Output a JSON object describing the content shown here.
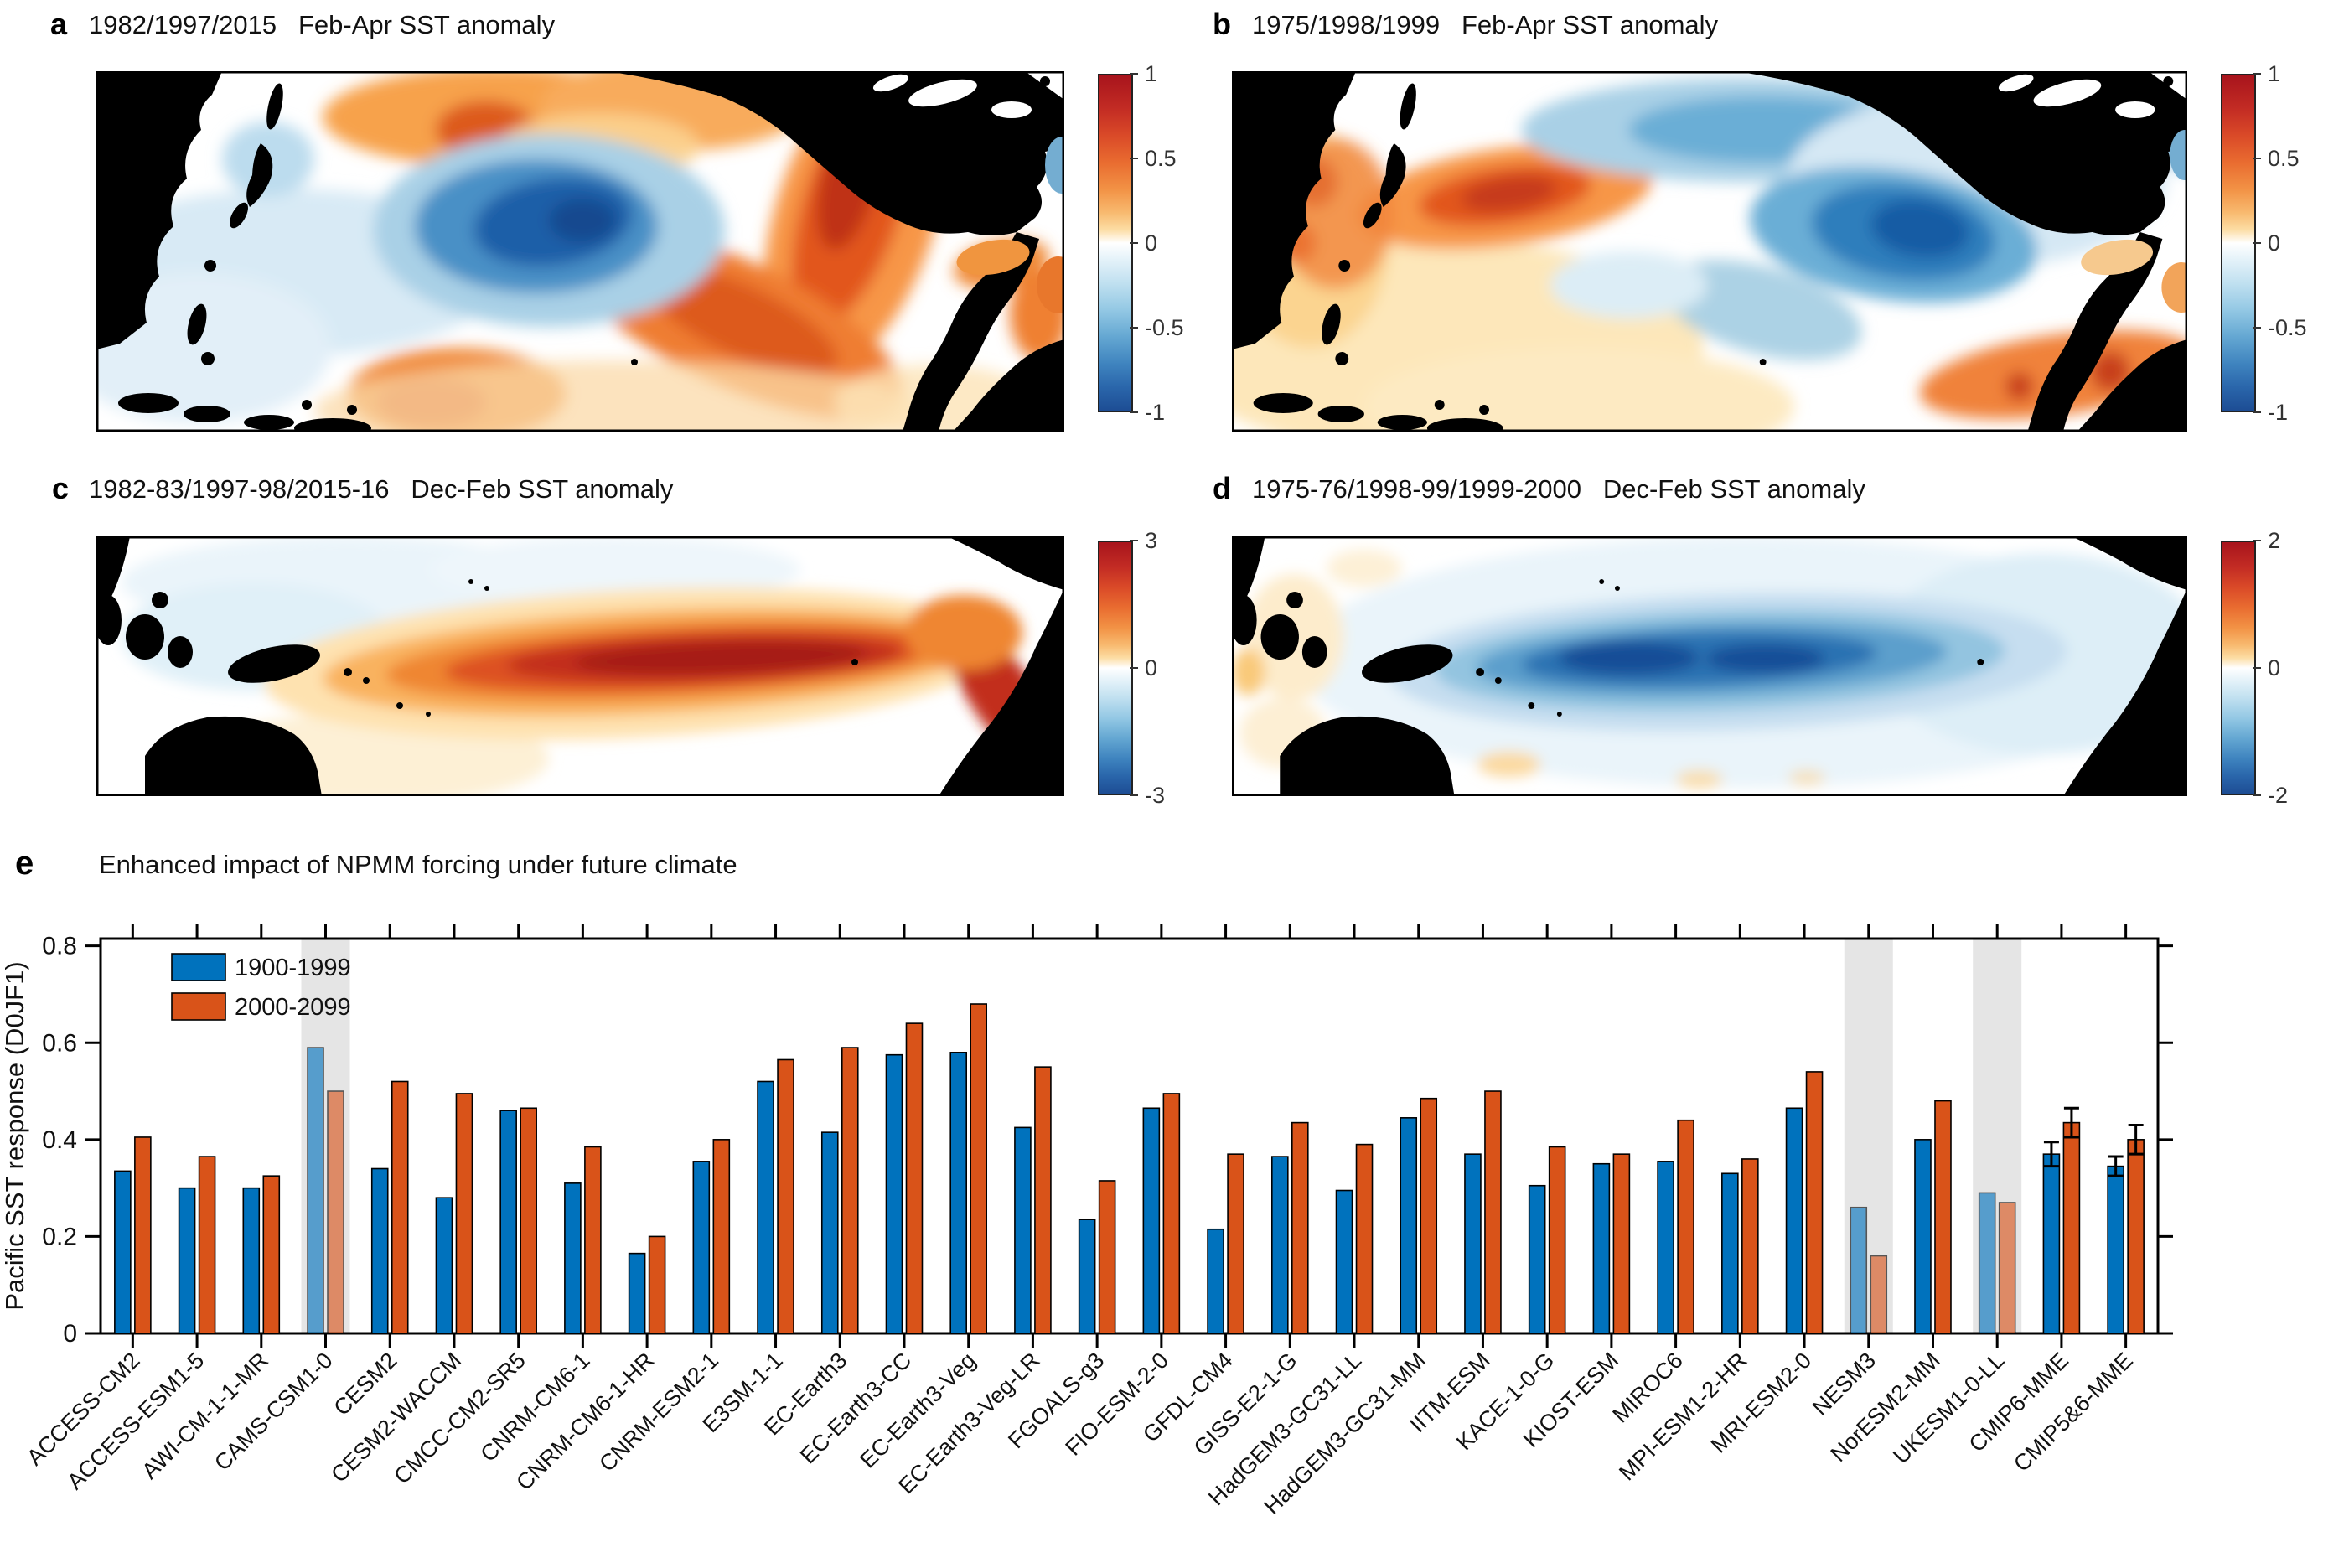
{
  "figure": {
    "panels": {
      "a": {
        "label": "a",
        "title": "1982/1997/2015   Feb-Apr SST anomaly",
        "colorbar_ticks": [
          "1",
          "0.5",
          "0",
          "-0.5",
          "-1"
        ]
      },
      "b": {
        "label": "b",
        "title": "1975/1998/1999   Feb-Apr SST anomaly",
        "colorbar_ticks": [
          "1",
          "0.5",
          "0",
          "-0.5",
          "-1"
        ]
      },
      "c": {
        "label": "c",
        "title": "1982-83/1997-98/2015-16   Dec-Feb SST anomaly",
        "colorbar_ticks": [
          "3",
          "0",
          "-3"
        ]
      },
      "d": {
        "label": "d",
        "title": "1975-76/1998-99/1999-2000   Dec-Feb SST anomaly",
        "colorbar_ticks": [
          "2",
          "0",
          "-2"
        ]
      },
      "e": {
        "label": "e",
        "title": "Enhanced impact of NPMM forcing under future climate"
      }
    }
  },
  "chart_data": {
    "type": "bar",
    "title": "Enhanced impact of NPMM forcing under future climate",
    "xlabel": "",
    "ylabel": "Pacific SST response (D0JF1)",
    "ylim": [
      0,
      0.815
    ],
    "yticks": [
      0,
      0.2,
      0.4,
      0.6,
      0.8
    ],
    "ytick_labels": [
      "0",
      "0.2",
      "0.4",
      "0.6",
      "0.8"
    ],
    "grid": false,
    "legend_position": "top-left",
    "categories": [
      "ACCESS-CM2",
      "ACCESS-ESM1-5",
      "AWI-CM-1-1-MR",
      "CAMS-CSM1-0",
      "CESM2",
      "CESM2-WACCM",
      "CMCC-CM2-SR5",
      "CNRM-CM6-1",
      "CNRM-CM6-1-HR",
      "CNRM-ESM2-1",
      "E3SM-1-1",
      "EC-Earth3",
      "EC-Earth3-CC",
      "EC-Earth3-Veg",
      "EC-Earth3-Veg-LR",
      "FGOALS-g3",
      "FIO-ESM-2-0",
      "GFDL-CM4",
      "GISS-E2-1-G",
      "HadGEM3-GC31-LL",
      "HadGEM3-GC31-MM",
      "IITM-ESM",
      "KACE-1-0-G",
      "KIOST-ESM",
      "MIROC6",
      "MPI-ESM1-2-HR",
      "MRI-ESM2-0",
      "NESM3",
      "NorESM2-MM",
      "UKESM1-0-LL",
      "CMIP6-MME",
      "CMIP5&6-MME"
    ],
    "series": [
      {
        "name": "1900-1999",
        "color": "#0072BD",
        "values": [
          0.335,
          0.3,
          0.3,
          0.59,
          0.34,
          0.28,
          0.46,
          0.31,
          0.165,
          0.355,
          0.52,
          0.415,
          0.575,
          0.58,
          0.425,
          0.235,
          0.465,
          0.215,
          0.365,
          0.295,
          0.445,
          0.37,
          0.305,
          0.35,
          0.355,
          0.33,
          0.465,
          0.26,
          0.4,
          0.29,
          0.37,
          0.345
        ]
      },
      {
        "name": "2000-2099",
        "color": "#D95319",
        "values": [
          0.405,
          0.365,
          0.325,
          0.5,
          0.52,
          0.495,
          0.465,
          0.385,
          0.2,
          0.4,
          0.565,
          0.59,
          0.64,
          0.68,
          0.55,
          0.315,
          0.495,
          0.37,
          0.435,
          0.39,
          0.485,
          0.5,
          0.385,
          0.37,
          0.44,
          0.36,
          0.54,
          0.16,
          0.48,
          0.27,
          0.435,
          0.4
        ]
      }
    ],
    "highlighted_categories": [
      "CAMS-CSM1-0",
      "NESM3",
      "UKESM1-0-LL"
    ],
    "error_bars": {
      "CMIP6-MME": [
        0.025,
        0.03
      ],
      "CMIP5&6-MME": [
        0.02,
        0.03
      ]
    }
  },
  "colors": {
    "bar_blue": "#0072BD",
    "bar_orange": "#D95319",
    "highlight_band": "#e5e5e5",
    "land": "#000000"
  }
}
